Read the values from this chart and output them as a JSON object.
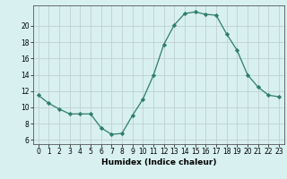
{
  "x": [
    0,
    1,
    2,
    3,
    4,
    5,
    6,
    7,
    8,
    9,
    10,
    11,
    12,
    13,
    14,
    15,
    16,
    17,
    18,
    19,
    20,
    21,
    22,
    23
  ],
  "y": [
    11.5,
    10.5,
    9.8,
    9.2,
    9.2,
    9.2,
    7.5,
    6.7,
    6.8,
    9.0,
    11.0,
    13.9,
    17.7,
    20.1,
    21.5,
    21.7,
    21.4,
    21.3,
    19.0,
    17.0,
    14.0,
    12.5,
    11.5,
    11.3
  ],
  "xlabel": "Humidex (Indice chaleur)",
  "xlim": [
    -0.5,
    23.5
  ],
  "ylim": [
    5.5,
    22.5
  ],
  "yticks": [
    6,
    8,
    10,
    12,
    14,
    16,
    18,
    20
  ],
  "xticks": [
    0,
    1,
    2,
    3,
    4,
    5,
    6,
    7,
    8,
    9,
    10,
    11,
    12,
    13,
    14,
    15,
    16,
    17,
    18,
    19,
    20,
    21,
    22,
    23
  ],
  "line_color": "#2e7d6e",
  "marker": "D",
  "marker_size": 2.2,
  "bg_color": "#d8f0f0",
  "grid_color": "#c0d0d0",
  "spine_color": "#555555",
  "tick_fontsize": 5.5,
  "xlabel_fontsize": 6.5
}
